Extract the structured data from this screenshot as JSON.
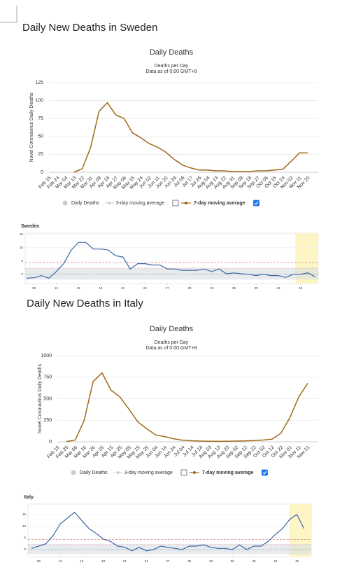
{
  "headings": [
    "Daily New Deaths in Sweden",
    "Daily New Deaths in Italy"
  ],
  "chart_data": [
    {
      "type": "line",
      "title": "Daily Deaths",
      "subtitle": [
        "Deaths per Day",
        "Data as of 0:00 GMT+8"
      ],
      "y_label": "Novel Coronavirus Daily Deaths",
      "categories": [
        "Feb 15",
        "Feb 24",
        "Mar 04",
        "Mar 13",
        "Mar 22",
        "Mar 31",
        "Apr 09",
        "Apr 18",
        "Apr 27",
        "May 06",
        "May 15",
        "May 24",
        "Jun 02",
        "Jun 11",
        "Jun 20",
        "Jun 29",
        "Jul 08",
        "Jul 17",
        "Jul 26",
        "Aug 04",
        "Aug 13",
        "Aug 22",
        "Aug 31",
        "Sep 09",
        "Sep 18",
        "Sep 27",
        "Oct 06",
        "Oct 15",
        "Oct 24",
        "Nov 02",
        "Nov 11",
        "Nov 20"
      ],
      "series": [
        {
          "name": "7-day moving average",
          "color": "#a0691a",
          "checked": true,
          "values": [
            null,
            null,
            null,
            0,
            5,
            35,
            85,
            97,
            80,
            75,
            55,
            48,
            40,
            35,
            28,
            18,
            10,
            6,
            3,
            3,
            2,
            2,
            1,
            1,
            1,
            2,
            2,
            3,
            4,
            15,
            27,
            27
          ]
        }
      ],
      "legend": [
        {
          "name": "Daily Deaths"
        },
        {
          "name": "3-day moving average",
          "checked": false
        }
      ],
      "ylim": [
        0,
        125
      ],
      "yticks": [
        0,
        25,
        50,
        75,
        100,
        125
      ],
      "grid": true
    },
    {
      "type": "weekly",
      "title": "Sweden",
      "x": [
        8,
        9,
        10,
        11,
        12,
        13,
        14,
        15,
        16,
        17,
        18,
        19,
        20,
        21,
        22,
        23,
        24,
        25,
        26,
        27,
        28,
        29,
        30,
        31,
        32,
        33,
        34,
        35,
        36,
        37,
        38,
        39,
        40,
        41,
        42,
        43,
        44,
        45,
        46,
        47
      ],
      "series": [
        {
          "color": "#3a67a6",
          "values": [
            -1.5,
            -1.3,
            -0.5,
            -1.5,
            1,
            4,
            9,
            12,
            12,
            9.5,
            9.5,
            9.2,
            7,
            6.5,
            2,
            4,
            4,
            3.5,
            3.5,
            2,
            2,
            1.5,
            1.5,
            1.5,
            2,
            1,
            2,
            0.2,
            0.5,
            0.2,
            0,
            -0.5,
            0,
            -0.5,
            -0.5,
            -1.2,
            0,
            0,
            0.5,
            -1
          ]
        }
      ],
      "xlim": [
        7.8,
        47.4
      ],
      "ylim": [
        -3.5,
        15.5
      ],
      "xticks": [
        {
          "value": 9,
          "label": "09"
        },
        12,
        15,
        18,
        21,
        24,
        27,
        30,
        33,
        36,
        39,
        42,
        45
      ],
      "yticks": [
        0,
        5,
        10,
        15
      ],
      "highlight": [
        44.3,
        47.4
      ],
      "band": [
        -2,
        2.3
      ],
      "reference_lines": [
        4.4,
        2.3
      ]
    },
    {
      "type": "line",
      "title": "Daily Deaths",
      "subtitle": [
        "Deaths per Day",
        "Data as of 0:00 GMT+8"
      ],
      "y_label": "Novel Coronavirus Daily Deaths",
      "categories": [
        "Feb 15",
        "Feb 25",
        "Mar 06",
        "Mar 16",
        "Mar 26",
        "Apr 05",
        "Apr 15",
        "Apr 25",
        "May 05",
        "May 15",
        "May 25",
        "Jun 04",
        "Jun 14",
        "Jun 24",
        "Jul 04",
        "Jul 14",
        "Jul 24",
        "Aug 03",
        "Aug 13",
        "Aug 23",
        "Sep 02",
        "Sep 12",
        "Sep 22",
        "Oct 02",
        "Oct 12",
        "Oct 22",
        "Nov 01",
        "Nov 11",
        "Nov 21"
      ],
      "series": [
        {
          "name": "7-day moving average",
          "color": "#a0691a",
          "checked": true,
          "values": [
            null,
            2,
            20,
            250,
            700,
            800,
            600,
            520,
            380,
            230,
            150,
            80,
            60,
            35,
            18,
            12,
            8,
            6,
            5,
            6,
            8,
            10,
            15,
            20,
            30,
            100,
            280,
            520,
            680
          ]
        }
      ],
      "legend": [
        {
          "name": "Daily Deaths"
        },
        {
          "name": "3-day moving average",
          "checked": false
        }
      ],
      "ylim": [
        0,
        1000
      ],
      "yticks": [
        0,
        250,
        500,
        750,
        1000
      ],
      "grid": true
    },
    {
      "type": "weekly",
      "title": "Italy",
      "x": [
        8,
        9,
        10,
        11,
        12,
        13,
        14,
        15,
        16,
        17,
        18,
        19,
        20,
        21,
        22,
        23,
        24,
        25,
        26,
        27,
        28,
        29,
        30,
        31,
        32,
        33,
        34,
        35,
        36,
        37,
        38,
        39,
        40,
        41,
        42,
        43,
        44,
        45,
        46
      ],
      "series": [
        {
          "color": "#3a67a6",
          "values": [
            0.5,
            1.5,
            2.5,
            6,
            11,
            13.5,
            16,
            12.5,
            9,
            7,
            4.5,
            3.5,
            1.5,
            1,
            -0.5,
            1,
            -0.5,
            0,
            1.5,
            1,
            0.5,
            0,
            1.5,
            1.5,
            2,
            1,
            0.5,
            0.5,
            0,
            2,
            0,
            1.5,
            1.5,
            3.5,
            6.5,
            9,
            13,
            15,
            9
          ]
        }
      ],
      "xlim": [
        7.5,
        47
      ],
      "ylim": [
        -3,
        19.5
      ],
      "xticks": [
        {
          "value": 9,
          "label": "09"
        },
        12,
        15,
        18,
        21,
        24,
        27,
        30,
        33,
        36,
        39,
        42,
        45
      ],
      "yticks": [
        0,
        5,
        10,
        15
      ],
      "highlight": [
        43.9,
        47
      ],
      "band": [
        -2,
        2.3
      ],
      "reference_lines": [
        4.4,
        2.3
      ]
    }
  ]
}
